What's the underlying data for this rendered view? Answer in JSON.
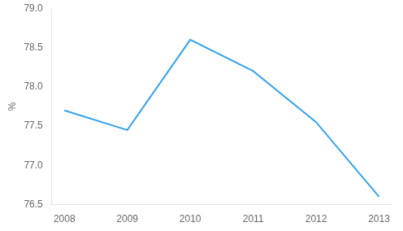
{
  "chart_data": {
    "type": "line",
    "ylabel": "%",
    "x": [
      2008,
      2009,
      2010,
      2011,
      2012,
      2013
    ],
    "values": [
      77.7,
      77.45,
      78.6,
      78.2,
      77.55,
      76.6
    ],
    "xlim": [
      2007.8,
      2013.2
    ],
    "xticks": [
      2008,
      2009,
      2010,
      2011,
      2012,
      2013
    ],
    "ylim": [
      76.5,
      79.0
    ],
    "yticks": [
      76.5,
      {
        "value": 77,
        "label": "77.0"
      },
      77.5,
      {
        "value": 78,
        "label": "78.0"
      },
      78.5,
      {
        "value": 79,
        "label": "79.0"
      }
    ],
    "grid": false
  }
}
